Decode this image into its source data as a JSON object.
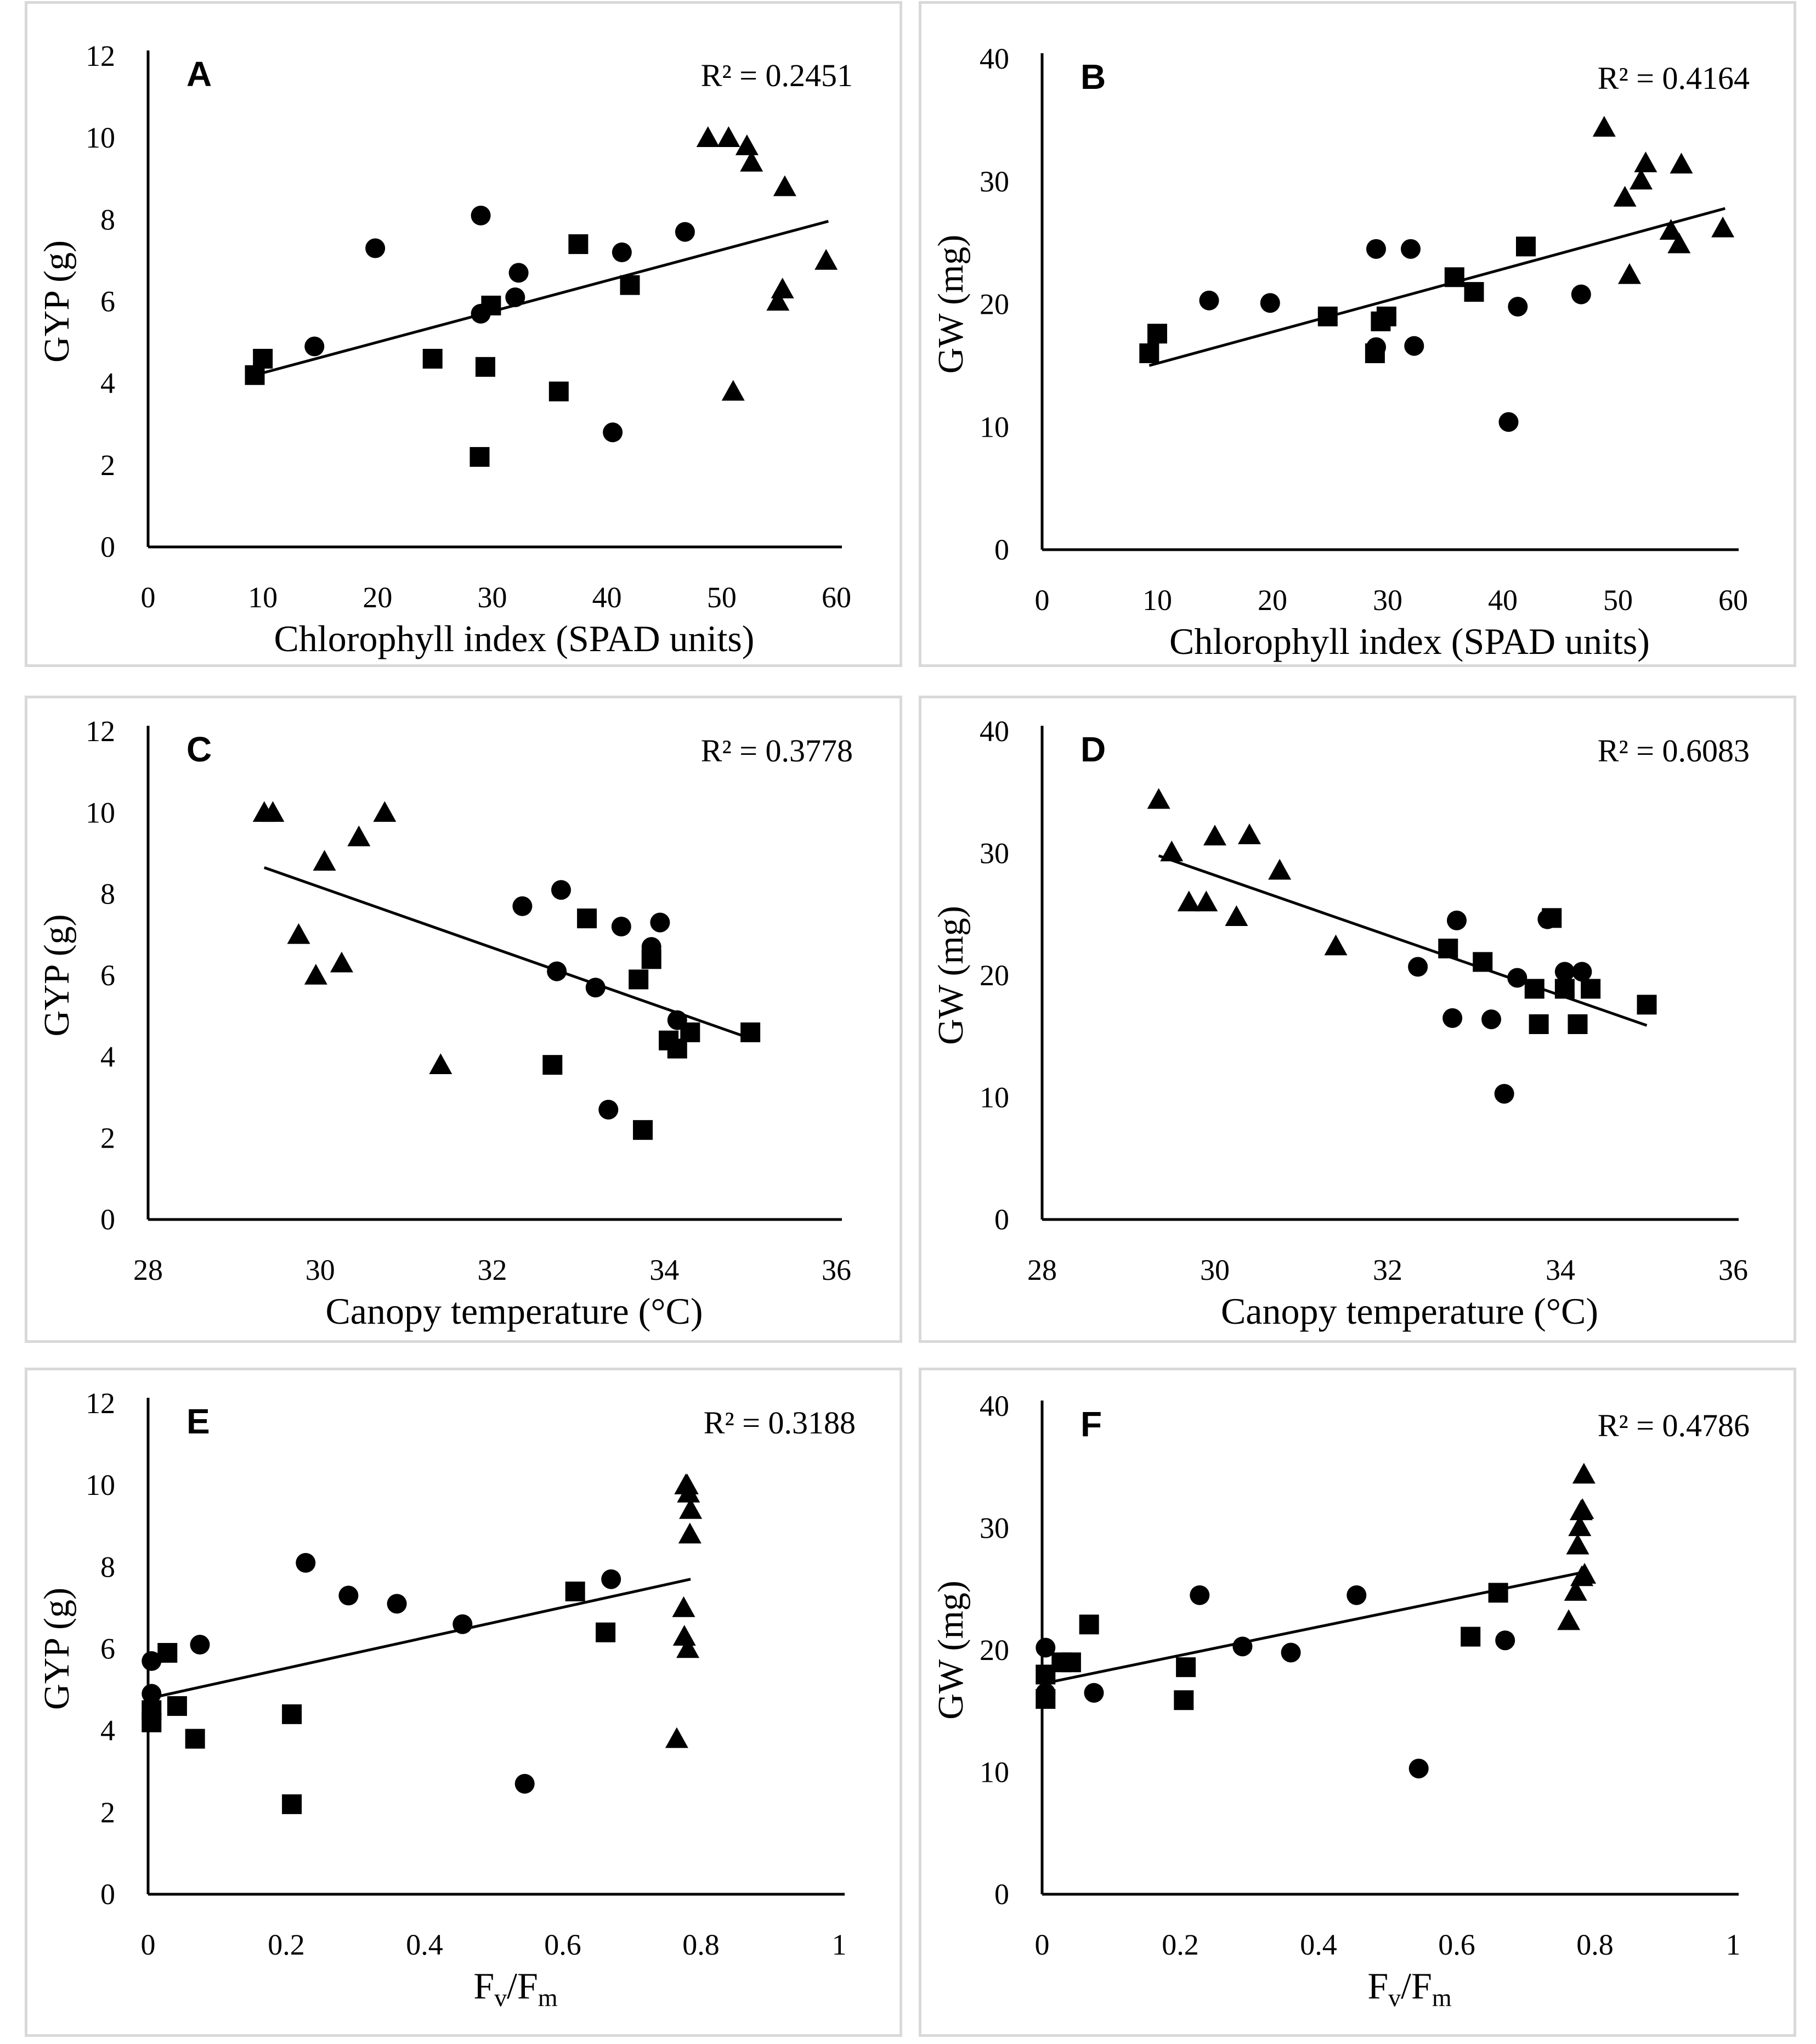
{
  "chart_data": [
    {
      "type": "scatter",
      "panel_label": "A",
      "r2_label": "R² = 0.2451",
      "ylabel": "GYP (g)",
      "xlabel": "Chlorophyll index (SPAD units)",
      "xlim": [
        0,
        60
      ],
      "ylim": [
        0,
        12
      ],
      "x_ticks": [
        "0",
        "10",
        "20",
        "30",
        "40",
        "50",
        "60"
      ],
      "y_ticks": [
        "0",
        "2",
        "4",
        "6",
        "8",
        "10",
        "12"
      ],
      "grid": false,
      "trendline": {
        "x": [
          9.3,
          59.3
        ],
        "y": [
          4.2,
          7.96
        ]
      },
      "series": [
        {
          "marker": "circle",
          "points": [
            [
              14.5,
              4.9
            ],
            [
              19.8,
              7.3
            ],
            [
              29.0,
              8.1
            ],
            [
              29.0,
              5.7
            ],
            [
              32.0,
              6.1
            ],
            [
              32.3,
              6.7
            ],
            [
              40.5,
              2.8
            ],
            [
              41.3,
              7.2
            ],
            [
              46.8,
              7.7
            ]
          ]
        },
        {
          "marker": "square",
          "points": [
            [
              9.3,
              4.2
            ],
            [
              10.0,
              4.6
            ],
            [
              24.8,
              4.6
            ],
            [
              28.9,
              2.2
            ],
            [
              29.4,
              4.4
            ],
            [
              29.9,
              5.9
            ],
            [
              35.8,
              3.8
            ],
            [
              37.5,
              7.4
            ],
            [
              42.0,
              6.4
            ]
          ]
        },
        {
          "marker": "triangle",
          "points": [
            [
              48.8,
              10.0
            ],
            [
              50.6,
              10.0
            ],
            [
              51.0,
              3.8
            ],
            [
              52.2,
              9.8
            ],
            [
              52.6,
              9.4
            ],
            [
              54.9,
              6.0
            ],
            [
              55.3,
              6.3
            ],
            [
              55.5,
              8.8
            ],
            [
              59.1,
              7.0
            ]
          ]
        }
      ]
    },
    {
      "type": "scatter",
      "panel_label": "B",
      "r2_label": "R² = 0.4164",
      "ylabel": "GW (mg)",
      "xlabel": "Chlorophyll index (SPAD units)",
      "xlim": [
        0,
        60
      ],
      "ylim": [
        0,
        40
      ],
      "x_ticks": [
        "0",
        "10",
        "20",
        "30",
        "40",
        "50",
        "60"
      ],
      "y_ticks": [
        "0",
        "10",
        "20",
        "30",
        "40"
      ],
      "grid": false,
      "trendline": {
        "x": [
          9.3,
          59.3
        ],
        "y": [
          15.0,
          27.8
        ]
      },
      "series": [
        {
          "marker": "circle",
          "points": [
            [
              14.5,
              20.3
            ],
            [
              19.8,
              20.1
            ],
            [
              29.0,
              24.5
            ],
            [
              29.0,
              16.5
            ],
            [
              32.0,
              24.5
            ],
            [
              32.3,
              16.6
            ],
            [
              40.5,
              10.4
            ],
            [
              41.3,
              19.8
            ],
            [
              46.8,
              20.8
            ]
          ]
        },
        {
          "marker": "square",
          "points": [
            [
              9.3,
              16.0
            ],
            [
              10.0,
              17.6
            ],
            [
              24.8,
              19.0
            ],
            [
              28.9,
              16.0
            ],
            [
              29.4,
              18.6
            ],
            [
              29.9,
              19.0
            ],
            [
              35.8,
              22.2
            ],
            [
              37.5,
              21.0
            ],
            [
              42.0,
              24.7
            ]
          ]
        },
        {
          "marker": "triangle",
          "points": [
            [
              48.8,
              34.4
            ],
            [
              50.6,
              28.7
            ],
            [
              51.0,
              22.4
            ],
            [
              52.0,
              30.1
            ],
            [
              52.4,
              31.5
            ],
            [
              54.6,
              26.0
            ],
            [
              55.3,
              24.9
            ],
            [
              55.5,
              31.4
            ],
            [
              59.1,
              26.2
            ]
          ]
        }
      ]
    },
    {
      "type": "scatter",
      "panel_label": "C",
      "r2_label": "R² = 0.3778",
      "ylabel": "GYP (g)",
      "xlabel": "Canopy temperature (°C)",
      "xlim": [
        28,
        36
      ],
      "ylim": [
        0,
        12
      ],
      "x_ticks": [
        "28",
        "30",
        "32",
        "34",
        "36"
      ],
      "y_ticks": [
        "0",
        "2",
        "4",
        "6",
        "8",
        "10",
        "12"
      ],
      "grid": false,
      "trendline": {
        "x": [
          29.35,
          35.0
        ],
        "y": [
          8.65,
          4.45
        ]
      },
      "series": [
        {
          "marker": "circle",
          "points": [
            [
              32.35,
              7.7
            ],
            [
              32.75,
              6.1
            ],
            [
              32.8,
              8.1
            ],
            [
              33.2,
              5.7
            ],
            [
              33.35,
              2.7
            ],
            [
              33.5,
              7.2
            ],
            [
              33.85,
              6.7
            ],
            [
              33.95,
              7.3
            ],
            [
              34.15,
              4.9
            ]
          ]
        },
        {
          "marker": "square",
          "points": [
            [
              32.7,
              3.8
            ],
            [
              33.1,
              7.4
            ],
            [
              33.7,
              5.9
            ],
            [
              33.75,
              2.2
            ],
            [
              33.85,
              6.4
            ],
            [
              34.05,
              4.4
            ],
            [
              34.15,
              4.2
            ],
            [
              34.3,
              4.6
            ],
            [
              35.0,
              4.6
            ]
          ]
        },
        {
          "marker": "triangle",
          "points": [
            [
              29.35,
              10.0
            ],
            [
              29.45,
              10.0
            ],
            [
              29.75,
              7.0
            ],
            [
              29.95,
              6.0
            ],
            [
              30.05,
              8.8
            ],
            [
              30.25,
              6.3
            ],
            [
              30.45,
              9.4
            ],
            [
              30.75,
              10.0
            ],
            [
              31.4,
              3.8
            ]
          ]
        }
      ]
    },
    {
      "type": "scatter",
      "panel_label": "D",
      "r2_label": "R² = 0.6083",
      "ylabel": "GW (mg)",
      "xlabel": "Canopy temperature (°C)",
      "xlim": [
        28,
        36
      ],
      "ylim": [
        0,
        40
      ],
      "x_ticks": [
        "28",
        "30",
        "32",
        "34",
        "36"
      ],
      "y_ticks": [
        "0",
        "10",
        "20",
        "30",
        "40"
      ],
      "grid": false,
      "trendline": {
        "x": [
          29.35,
          35.0
        ],
        "y": [
          29.8,
          15.9
        ]
      },
      "series": [
        {
          "marker": "circle",
          "points": [
            [
              32.35,
              20.7
            ],
            [
              32.75,
              16.5
            ],
            [
              32.8,
              24.5
            ],
            [
              33.2,
              16.4
            ],
            [
              33.35,
              10.3
            ],
            [
              33.5,
              19.8
            ],
            [
              33.85,
              24.6
            ],
            [
              34.05,
              20.3
            ],
            [
              34.25,
              20.3
            ]
          ]
        },
        {
          "marker": "square",
          "points": [
            [
              32.7,
              22.2
            ],
            [
              33.1,
              21.1
            ],
            [
              33.7,
              18.9
            ],
            [
              33.75,
              16.0
            ],
            [
              33.9,
              24.7
            ],
            [
              34.05,
              18.9
            ],
            [
              34.2,
              16.0
            ],
            [
              34.35,
              18.9
            ],
            [
              35.0,
              17.6
            ]
          ]
        },
        {
          "marker": "triangle",
          "points": [
            [
              29.35,
              34.4
            ],
            [
              29.5,
              30.1
            ],
            [
              29.7,
              26.0
            ],
            [
              29.9,
              26.0
            ],
            [
              30.0,
              31.4
            ],
            [
              30.25,
              24.8
            ],
            [
              30.4,
              31.5
            ],
            [
              30.75,
              28.6
            ],
            [
              31.4,
              22.4
            ]
          ]
        }
      ]
    },
    {
      "type": "scatter",
      "panel_label": "E",
      "r2_label": "R² = 0.3188",
      "ylabel": "GYP (g)",
      "xlabel": "Fv/Fm",
      "xlabel_parts": {
        "base1": "F",
        "sub1": "v",
        "slash": "/",
        "base2": "F",
        "sub2": "m"
      },
      "xlim": [
        0,
        1
      ],
      "ylim": [
        0,
        12
      ],
      "x_ticks": [
        "0",
        "0.2",
        "0.4",
        "0.6",
        "0.8",
        "1"
      ],
      "y_ticks": [
        "0",
        "2",
        "4",
        "6",
        "8",
        "10",
        "12"
      ],
      "grid": false,
      "trendline": {
        "x": [
          0.005,
          0.785
        ],
        "y": [
          4.8,
          7.7
        ]
      },
      "series": [
        {
          "marker": "circle",
          "points": [
            [
              0.005,
              5.7
            ],
            [
              0.005,
              4.9
            ],
            [
              0.075,
              6.1
            ],
            [
              0.228,
              8.1
            ],
            [
              0.29,
              7.3
            ],
            [
              0.36,
              7.1
            ],
            [
              0.455,
              6.6
            ],
            [
              0.545,
              2.7
            ],
            [
              0.67,
              7.7
            ]
          ]
        },
        {
          "marker": "square",
          "points": [
            [
              0.005,
              4.5
            ],
            [
              0.005,
              4.2
            ],
            [
              0.028,
              5.9
            ],
            [
              0.042,
              4.6
            ],
            [
              0.068,
              3.8
            ],
            [
              0.208,
              4.4
            ],
            [
              0.208,
              2.2
            ],
            [
              0.618,
              7.4
            ],
            [
              0.662,
              6.4
            ]
          ]
        },
        {
          "marker": "triangle",
          "points": [
            [
              0.765,
              3.8
            ],
            [
              0.775,
              7.0
            ],
            [
              0.776,
              6.3
            ],
            [
              0.778,
              10.0
            ],
            [
              0.78,
              10.0
            ],
            [
              0.781,
              6.0
            ],
            [
              0.782,
              9.8
            ],
            [
              0.784,
              8.8
            ],
            [
              0.785,
              9.4
            ]
          ]
        }
      ]
    },
    {
      "type": "scatter",
      "panel_label": "F",
      "r2_label": "R² = 0.4786",
      "ylabel": "GW (mg)",
      "xlabel": "Fv/Fm",
      "xlabel_parts": {
        "base1": "F",
        "sub1": "v",
        "slash": "/",
        "base2": "F",
        "sub2": "m"
      },
      "xlim": [
        0,
        1
      ],
      "ylim": [
        0,
        40
      ],
      "x_ticks": [
        "0",
        "0.2",
        "0.4",
        "0.6",
        "0.8",
        "1"
      ],
      "y_ticks": [
        "0",
        "10",
        "20",
        "30",
        "40"
      ],
      "grid": false,
      "trendline": {
        "x": [
          0.005,
          0.785
        ],
        "y": [
          17.3,
          26.4
        ]
      },
      "series": [
        {
          "marker": "circle",
          "points": [
            [
              0.005,
              20.2
            ],
            [
              0.005,
              16.5
            ],
            [
              0.075,
              16.5
            ],
            [
              0.228,
              24.5
            ],
            [
              0.29,
              20.3
            ],
            [
              0.36,
              19.8
            ],
            [
              0.455,
              24.5
            ],
            [
              0.545,
              10.3
            ],
            [
              0.67,
              20.8
            ]
          ]
        },
        {
          "marker": "square",
          "points": [
            [
              0.005,
              16.0
            ],
            [
              0.005,
              18.0
            ],
            [
              0.028,
              19.0
            ],
            [
              0.042,
              19.0
            ],
            [
              0.068,
              22.1
            ],
            [
              0.205,
              15.9
            ],
            [
              0.208,
              18.6
            ],
            [
              0.62,
              21.1
            ],
            [
              0.66,
              24.7
            ]
          ]
        },
        {
          "marker": "triangle",
          "points": [
            [
              0.762,
              22.4
            ],
            [
              0.772,
              24.8
            ],
            [
              0.775,
              28.6
            ],
            [
              0.778,
              30.1
            ],
            [
              0.78,
              31.4
            ],
            [
              0.781,
              26.0
            ],
            [
              0.782,
              31.5
            ],
            [
              0.784,
              34.4
            ],
            [
              0.785,
              26.2
            ]
          ]
        }
      ]
    }
  ]
}
